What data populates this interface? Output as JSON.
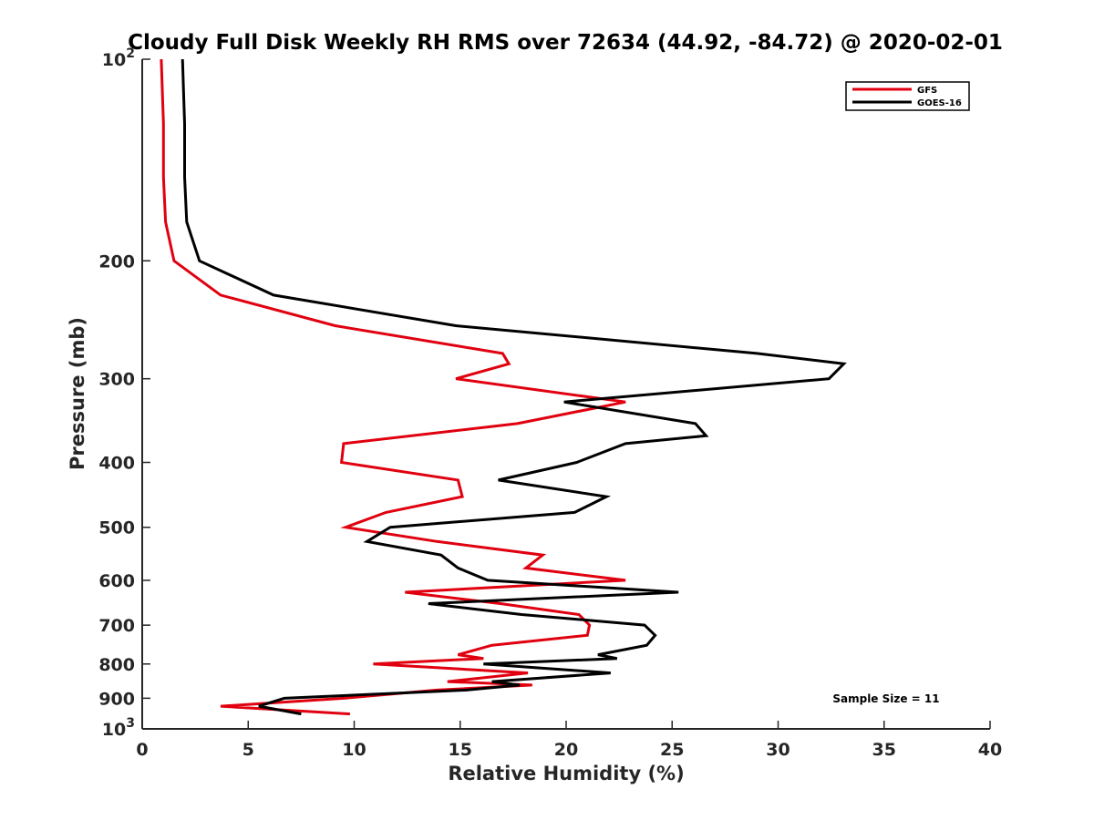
{
  "chart_data": {
    "type": "line",
    "title": "Cloudy Full Disk Weekly RH RMS over 72634 (44.92, -84.72) @ 2020-02-01",
    "xlabel": "Relative Humidity (%)",
    "ylabel": "Pressure (mb)",
    "xlim": [
      0,
      40
    ],
    "ylim": [
      100,
      1000
    ],
    "yscale": "log",
    "y_reversed": true,
    "grid": false,
    "legend_position": "top-right",
    "x_ticks": [
      0,
      5,
      10,
      15,
      20,
      25,
      30,
      35,
      40
    ],
    "x_tick_labels": [
      "0",
      "5",
      "10",
      "15",
      "20",
      "25",
      "30",
      "35",
      "40"
    ],
    "y_ticks": [
      100,
      200,
      300,
      400,
      500,
      600,
      700,
      800,
      900,
      1000
    ],
    "y_tick_labels": [
      "10^2",
      "200",
      "300",
      "400",
      "500",
      "600",
      "700",
      "800",
      "900",
      "10^3"
    ],
    "y_tick_labels_sup": {
      "100": {
        "base": "10",
        "exp": "2"
      },
      "1000": {
        "base": "10",
        "exp": "3"
      }
    },
    "annotation": "Sample Size = 11",
    "series": [
      {
        "name": "GFS",
        "color": "#e0000f",
        "points": [
          [
            0.9,
            100
          ],
          [
            1.0,
            125
          ],
          [
            1.0,
            150
          ],
          [
            1.1,
            175
          ],
          [
            1.5,
            200
          ],
          [
            3.7,
            225
          ],
          [
            9.1,
            250
          ],
          [
            17.0,
            275
          ],
          [
            17.3,
            285
          ],
          [
            14.8,
            300
          ],
          [
            22.8,
            325
          ],
          [
            17.7,
            350
          ],
          [
            9.5,
            375
          ],
          [
            9.4,
            400
          ],
          [
            14.9,
            425
          ],
          [
            15.1,
            450
          ],
          [
            11.5,
            475
          ],
          [
            9.6,
            500
          ],
          [
            13.9,
            525
          ],
          [
            18.9,
            550
          ],
          [
            18.1,
            575
          ],
          [
            22.8,
            600
          ],
          [
            12.4,
            625
          ],
          [
            16.9,
            650
          ],
          [
            20.6,
            675
          ],
          [
            21.1,
            700
          ],
          [
            21.0,
            725
          ],
          [
            16.5,
            750
          ],
          [
            14.9,
            775
          ],
          [
            16.1,
            785
          ],
          [
            10.9,
            800
          ],
          [
            18.2,
            825
          ],
          [
            14.4,
            850
          ],
          [
            18.4,
            860
          ],
          [
            13.9,
            875
          ],
          [
            9.5,
            900
          ],
          [
            3.7,
            925
          ],
          [
            9.8,
            950
          ]
        ]
      },
      {
        "name": "GOES-16",
        "color": "#000000",
        "points": [
          [
            1.9,
            100
          ],
          [
            2.0,
            125
          ],
          [
            2.0,
            150
          ],
          [
            2.1,
            175
          ],
          [
            2.7,
            200
          ],
          [
            6.2,
            225
          ],
          [
            14.8,
            250
          ],
          [
            29.0,
            275
          ],
          [
            33.1,
            285
          ],
          [
            32.4,
            300
          ],
          [
            19.9,
            325
          ],
          [
            26.1,
            350
          ],
          [
            26.6,
            365
          ],
          [
            22.8,
            375
          ],
          [
            20.5,
            400
          ],
          [
            16.8,
            425
          ],
          [
            21.9,
            450
          ],
          [
            20.4,
            475
          ],
          [
            11.7,
            500
          ],
          [
            10.6,
            525
          ],
          [
            14.1,
            550
          ],
          [
            14.9,
            575
          ],
          [
            16.3,
            600
          ],
          [
            25.3,
            625
          ],
          [
            13.5,
            650
          ],
          [
            17.9,
            675
          ],
          [
            23.7,
            700
          ],
          [
            24.2,
            725
          ],
          [
            23.8,
            750
          ],
          [
            21.5,
            775
          ],
          [
            22.4,
            785
          ],
          [
            16.1,
            800
          ],
          [
            22.1,
            825
          ],
          [
            16.5,
            850
          ],
          [
            17.8,
            860
          ],
          [
            15.3,
            875
          ],
          [
            6.7,
            900
          ],
          [
            5.5,
            925
          ],
          [
            7.5,
            950
          ]
        ]
      }
    ]
  }
}
